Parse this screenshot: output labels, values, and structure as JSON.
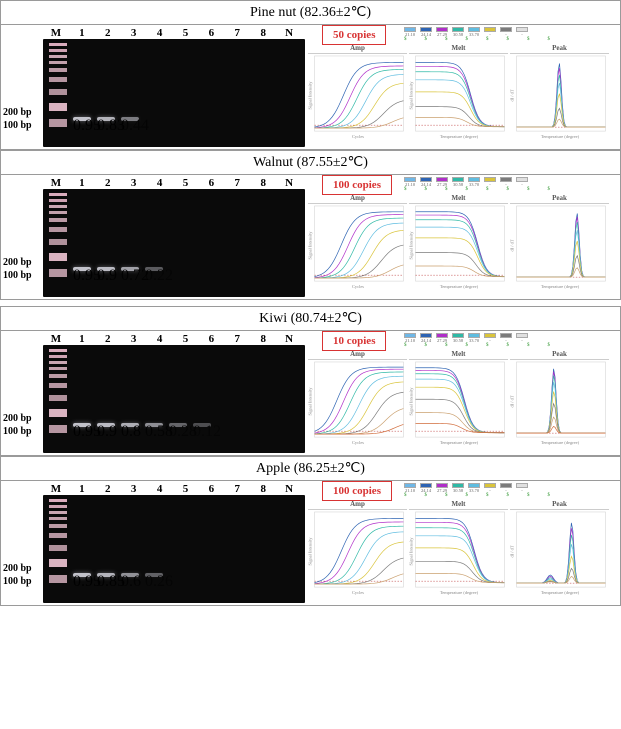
{
  "lane_labels": [
    "M",
    "1",
    "2",
    "3",
    "4",
    "5",
    "6",
    "7",
    "8",
    "N"
  ],
  "scale": {
    "upper": "200 bp",
    "lower": "100 bp"
  },
  "chart_titles": {
    "amp": "Amp",
    "melt": "Melt",
    "peak": "Peak"
  },
  "axis_labels": {
    "amp_x": "Cycles",
    "amp_y": "Signal Intensity",
    "melt_x": "Temperature (degree)",
    "melt_y": "Signal Intensity",
    "peak_x": "Temperature (degree)",
    "peak_y": "dI / dT"
  },
  "series_colors": [
    "#2e64b3",
    "#b02fc9",
    "#2fb9a6",
    "#5fbde0",
    "#d9c43b",
    "#7b7b7b",
    "#caa06f",
    "#d16b3a"
  ],
  "threshold_color": "#b83030",
  "axis_color": "#cccccc",
  "bg_color": "#ffffff",
  "legend_chips": [
    {
      "label": "C1",
      "val": "21.10",
      "color": "#6fb7e6"
    },
    {
      "label": "C2",
      "val": "24.14",
      "color": "#2e64b3"
    },
    {
      "label": "C3",
      "val": "27.29",
      "color": "#b02fc9"
    },
    {
      "label": "C4",
      "val": "30.58",
      "color": "#2fb9a6"
    },
    {
      "label": "C5",
      "val": "33.70",
      "color": "#5fbde0"
    },
    {
      "label": "C6",
      "val": "-",
      "color": "#d9c43b"
    },
    {
      "label": "C7",
      "val": "-",
      "color": "#7b7b7b"
    },
    {
      "label": "NTC",
      "val": "-",
      "color": "#e0e0e0"
    }
  ],
  "legend_bottom_marks": [
    "$",
    "$",
    "$",
    "$",
    "$",
    "$",
    "$",
    "$"
  ],
  "panels": [
    {
      "key": "pine",
      "title": "Pine nut (82.36±2℃)",
      "copies": "50 copies",
      "bands": [
        {
          "lane": 1,
          "intensity": 0.95,
          "y": 78
        },
        {
          "lane": 2,
          "intensity": 0.83,
          "y": 78
        },
        {
          "lane": 3,
          "intensity": 0.44,
          "y": 78
        }
      ],
      "amp_curves": [
        {
          "color": "#2e64b3",
          "takeoff": 13,
          "plateau": 0.95
        },
        {
          "color": "#b02fc9",
          "takeoff": 16,
          "plateau": 0.9
        },
        {
          "color": "#2fb9a6",
          "takeoff": 19,
          "plateau": 0.85
        },
        {
          "color": "#5fbde0",
          "takeoff": 23,
          "plateau": 0.78
        },
        {
          "color": "#d9c43b",
          "takeoff": 27,
          "plateau": 0.66
        },
        {
          "color": "#7b7b7b",
          "takeoff": 31,
          "plateau": 0.42
        },
        {
          "color": "#caa06f",
          "takeoff": 35,
          "plateau": 0.18
        }
      ],
      "melt_curves": [
        {
          "color": "#2e64b3",
          "start": 0.96,
          "drop_x": 0.62
        },
        {
          "color": "#b02fc9",
          "start": 0.9,
          "drop_x": 0.62
        },
        {
          "color": "#2fb9a6",
          "start": 0.82,
          "drop_x": 0.62
        },
        {
          "color": "#5fbde0",
          "start": 0.7,
          "drop_x": 0.62
        },
        {
          "color": "#d9c43b",
          "start": 0.52,
          "drop_x": 0.62
        },
        {
          "color": "#7b7b7b",
          "start": 0.3,
          "drop_x": 0.6
        },
        {
          "color": "#caa06f",
          "start": 0.14,
          "drop_x": 0.58
        }
      ],
      "peak_center": 0.48,
      "peak_heights": [
        0.95,
        0.88,
        0.78,
        0.66,
        0.5,
        0.28,
        0.12
      ]
    },
    {
      "key": "walnut",
      "title": "Walnut (87.55±2℃)",
      "copies": "100 copies",
      "bands": [
        {
          "lane": 1,
          "intensity": 0.95,
          "y": 78
        },
        {
          "lane": 2,
          "intensity": 0.9,
          "y": 78
        },
        {
          "lane": 3,
          "intensity": 0.72,
          "y": 78
        },
        {
          "lane": 4,
          "intensity": 0.22,
          "y": 78
        }
      ],
      "amp_curves": [
        {
          "color": "#2e64b3",
          "takeoff": 12,
          "plateau": 0.96
        },
        {
          "color": "#b02fc9",
          "takeoff": 15,
          "plateau": 0.92
        },
        {
          "color": "#2fb9a6",
          "takeoff": 18,
          "plateau": 0.87
        },
        {
          "color": "#5fbde0",
          "takeoff": 22,
          "plateau": 0.8
        },
        {
          "color": "#d9c43b",
          "takeoff": 26,
          "plateau": 0.7
        },
        {
          "color": "#7b7b7b",
          "takeoff": 30,
          "plateau": 0.5
        },
        {
          "color": "#caa06f",
          "takeoff": 34,
          "plateau": 0.22
        }
      ],
      "melt_curves": [
        {
          "color": "#2e64b3",
          "start": 0.97,
          "drop_x": 0.7
        },
        {
          "color": "#b02fc9",
          "start": 0.92,
          "drop_x": 0.7
        },
        {
          "color": "#2fb9a6",
          "start": 0.85,
          "drop_x": 0.7
        },
        {
          "color": "#5fbde0",
          "start": 0.74,
          "drop_x": 0.7
        },
        {
          "color": "#d9c43b",
          "start": 0.58,
          "drop_x": 0.7
        },
        {
          "color": "#7b7b7b",
          "start": 0.36,
          "drop_x": 0.68
        },
        {
          "color": "#caa06f",
          "start": 0.16,
          "drop_x": 0.66
        }
      ],
      "peak_center": 0.68,
      "peak_heights": [
        0.95,
        0.9,
        0.82,
        0.7,
        0.54,
        0.32,
        0.14
      ]
    },
    {
      "key": "kiwi",
      "title": "Kiwi (80.74±2℃)",
      "copies": "10 copies",
      "bands": [
        {
          "lane": 1,
          "intensity": 0.95,
          "y": 78
        },
        {
          "lane": 2,
          "intensity": 0.9,
          "y": 78
        },
        {
          "lane": 3,
          "intensity": 0.8,
          "y": 78
        },
        {
          "lane": 4,
          "intensity": 0.58,
          "y": 78
        },
        {
          "lane": 5,
          "intensity": 0.28,
          "y": 78
        },
        {
          "lane": 6,
          "intensity": 0.12,
          "y": 78
        }
      ],
      "amp_curves": [
        {
          "color": "#2e64b3",
          "takeoff": 10,
          "plateau": 0.97
        },
        {
          "color": "#b02fc9",
          "takeoff": 13,
          "plateau": 0.94
        },
        {
          "color": "#2fb9a6",
          "takeoff": 16,
          "plateau": 0.9
        },
        {
          "color": "#5fbde0",
          "takeoff": 20,
          "plateau": 0.84
        },
        {
          "color": "#d9c43b",
          "takeoff": 24,
          "plateau": 0.76
        },
        {
          "color": "#7b7b7b",
          "takeoff": 28,
          "plateau": 0.62
        },
        {
          "color": "#caa06f",
          "takeoff": 32,
          "plateau": 0.4
        },
        {
          "color": "#d16b3a",
          "takeoff": 36,
          "plateau": 0.18
        }
      ],
      "melt_curves": [
        {
          "color": "#2e64b3",
          "start": 0.97,
          "drop_x": 0.55
        },
        {
          "color": "#b02fc9",
          "start": 0.93,
          "drop_x": 0.55
        },
        {
          "color": "#2fb9a6",
          "start": 0.88,
          "drop_x": 0.55
        },
        {
          "color": "#5fbde0",
          "start": 0.8,
          "drop_x": 0.55
        },
        {
          "color": "#d9c43b",
          "start": 0.68,
          "drop_x": 0.55
        },
        {
          "color": "#7b7b7b",
          "start": 0.5,
          "drop_x": 0.54
        },
        {
          "color": "#caa06f",
          "start": 0.3,
          "drop_x": 0.53
        },
        {
          "color": "#d16b3a",
          "start": 0.14,
          "drop_x": 0.52
        }
      ],
      "peak_center": 0.42,
      "peak_heights": [
        0.96,
        0.92,
        0.86,
        0.76,
        0.62,
        0.44,
        0.24,
        0.1
      ]
    },
    {
      "key": "apple",
      "title": "Apple (86.25±2℃)",
      "copies": "100 copies",
      "bands": [
        {
          "lane": 1,
          "intensity": 0.95,
          "y": 78
        },
        {
          "lane": 2,
          "intensity": 0.85,
          "y": 78
        },
        {
          "lane": 3,
          "intensity": 0.6,
          "y": 78
        },
        {
          "lane": 4,
          "intensity": 0.26,
          "y": 78
        }
      ],
      "amp_curves": [
        {
          "color": "#2e64b3",
          "takeoff": 12,
          "plateau": 0.95
        },
        {
          "color": "#b02fc9",
          "takeoff": 15,
          "plateau": 0.9
        },
        {
          "color": "#2fb9a6",
          "takeoff": 19,
          "plateau": 0.84
        },
        {
          "color": "#5fbde0",
          "takeoff": 23,
          "plateau": 0.76
        },
        {
          "color": "#d9c43b",
          "takeoff": 27,
          "plateau": 0.62
        },
        {
          "color": "#7b7b7b",
          "takeoff": 31,
          "plateau": 0.4
        },
        {
          "color": "#caa06f",
          "takeoff": 35,
          "plateau": 0.18
        }
      ],
      "melt_curves": [
        {
          "color": "#2e64b3",
          "start": 0.96,
          "drop_x": 0.66
        },
        {
          "color": "#b02fc9",
          "start": 0.9,
          "drop_x": 0.66
        },
        {
          "color": "#2fb9a6",
          "start": 0.82,
          "drop_x": 0.66
        },
        {
          "color": "#5fbde0",
          "start": 0.7,
          "drop_x": 0.66
        },
        {
          "color": "#d9c43b",
          "start": 0.52,
          "drop_x": 0.65
        },
        {
          "color": "#7b7b7b",
          "start": 0.32,
          "drop_x": 0.64
        },
        {
          "color": "#caa06f",
          "start": 0.14,
          "drop_x": 0.62
        }
      ],
      "peak_center": 0.62,
      "peak_heights": [
        0.9,
        0.82,
        0.72,
        0.58,
        0.4,
        0.22,
        0.1
      ],
      "secondary_peak_center": 0.38,
      "secondary_peak_heights": [
        0.12,
        0.1,
        0.08,
        0.06,
        0.04,
        0.03,
        0.02
      ]
    }
  ]
}
